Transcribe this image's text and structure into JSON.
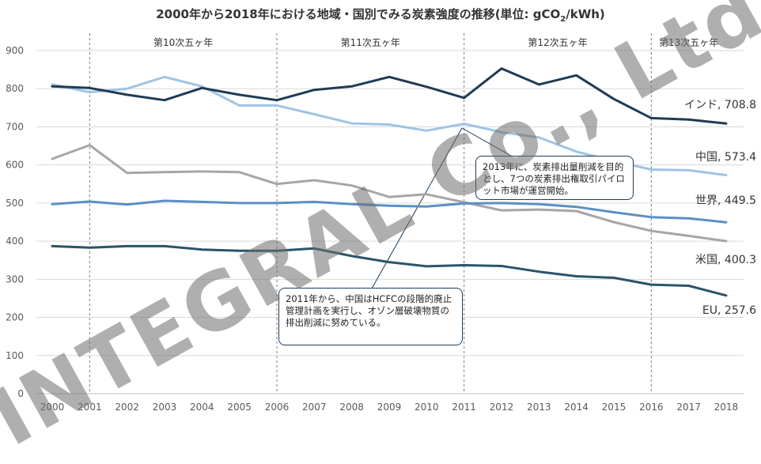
{
  "title": {
    "main": "2000年から2018年における地域・国別でみる炭素強度の推移(単位: gCO",
    "sub": "2",
    "tail": "/kWh)"
  },
  "watermark": "INTEGRAL Co., Ltd",
  "callouts": {
    "c2013": "2013年に、炭素排出量削減を目的とし、7つの炭素排出権取引パイロット市場が運営開始。",
    "c2011": "2011年から、中国はHCFCの段階的廃止管理計画を実行し、オゾン層破壊物質の排出削減に努めている。"
  },
  "colors": {
    "india": "#1f3b56",
    "china": "#9fc4e4",
    "world": "#5b8fc4",
    "us": "#a6a6a6",
    "eu": "#2b5468",
    "grid": "#d9d9d9",
    "axis": "#595959",
    "divider": "#7f7f7f"
  },
  "chart_data": {
    "type": "line",
    "title": "2000年から2018年における地域・国別でみる炭素強度の推移(単位: gCO2/kWh)",
    "x": [
      "2000",
      "2001",
      "2002",
      "2003",
      "2004",
      "2005",
      "2006",
      "2007",
      "2008",
      "2009",
      "2010",
      "2011",
      "2012",
      "2013",
      "2014",
      "2015",
      "2016",
      "2017",
      "2018"
    ],
    "ylim": [
      0,
      900
    ],
    "yticks": [
      0,
      100,
      200,
      300,
      400,
      500,
      600,
      700,
      800,
      900
    ],
    "grid": true,
    "periods": [
      {
        "label": "第10次五ヶ年",
        "from": "2001",
        "to": "2006"
      },
      {
        "label": "第11次五ヶ年",
        "from": "2006",
        "to": "2011"
      },
      {
        "label": "第12次五ヶ年",
        "from": "2011",
        "to": "2016"
      },
      {
        "label": "第13次五ヶ年",
        "from": "2016",
        "to": "2018"
      }
    ],
    "period_dividers": [
      "2001",
      "2006",
      "2011",
      "2016"
    ],
    "series": [
      {
        "name": "インド",
        "key": "india",
        "end_label": "インド, 708.8",
        "values": [
          806,
          802,
          784,
          770,
          802,
          784,
          770,
          797,
          806,
          831,
          805,
          776,
          853,
          811,
          835,
          773,
          723,
          719,
          708.8
        ]
      },
      {
        "name": "中国",
        "key": "china",
        "end_label": "中国, 573.4",
        "values": [
          811,
          791,
          800,
          831,
          806,
          756,
          756,
          733,
          709,
          706,
          690,
          708,
          686,
          672,
          635,
          610,
          588,
          586,
          573.4
        ]
      },
      {
        "name": "世界",
        "key": "world",
        "end_label": "世界, 449.5",
        "values": [
          497,
          504,
          496,
          506,
          503,
          500,
          500,
          503,
          497,
          493,
          491,
          499,
          500,
          497,
          490,
          476,
          463,
          460,
          449.5
        ]
      },
      {
        "name": "米国",
        "key": "us",
        "end_label": "米国, 400.3",
        "values": [
          616,
          652,
          579,
          581,
          583,
          581,
          550,
          560,
          546,
          516,
          523,
          502,
          481,
          483,
          479,
          450,
          427,
          414,
          400.3
        ]
      },
      {
        "name": "EU",
        "key": "eu",
        "end_label": "EU, 257.6",
        "values": [
          387,
          383,
          387,
          387,
          378,
          375,
          375,
          381,
          361,
          345,
          334,
          337,
          335,
          320,
          308,
          304,
          286,
          283,
          257.6
        ]
      }
    ]
  }
}
